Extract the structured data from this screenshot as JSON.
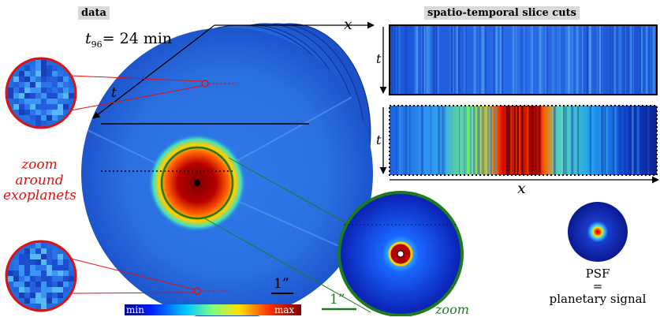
{
  "header": {
    "data_tag": "data",
    "time_label": "t",
    "time_sub": "96",
    "time_value": "= 24 min",
    "slice_tag": "spatio-temporal slice cuts"
  },
  "axes": {
    "x": "x",
    "t": "t"
  },
  "zoom_exoplanets": [
    "zoom",
    "around",
    "exoplanets"
  ],
  "scale": {
    "main": "1”",
    "zoom": "1”"
  },
  "zoom_label": "zoom",
  "colorbar": {
    "min": "min",
    "max": "max"
  },
  "psf": {
    "line1": "PSF",
    "line2": "=",
    "line3": "planetary signal"
  },
  "colors": {
    "red": "#e01010",
    "green": "#1e7a1e",
    "dark_blue": "#0a1a8c"
  }
}
